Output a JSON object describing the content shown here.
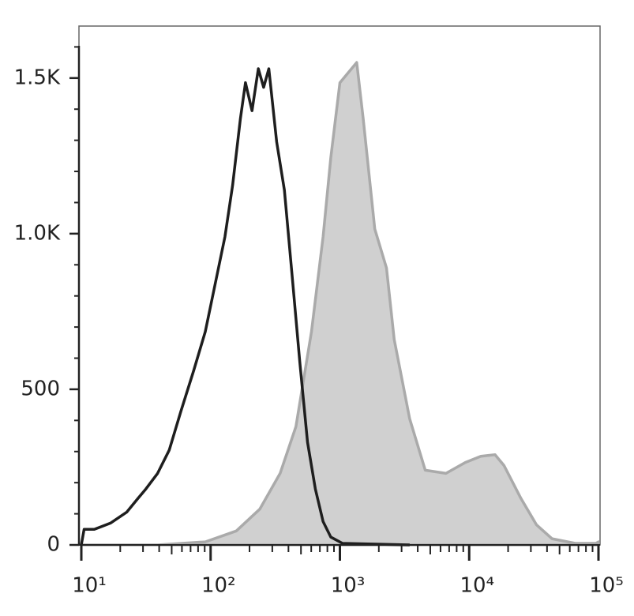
{
  "chart_data": {
    "type": "histogram-overlay",
    "xscale": "log",
    "xlim": [
      10,
      100000
    ],
    "ylim": [
      0,
      1667
    ],
    "xticks": [
      {
        "value": 10,
        "label": "10¹"
      },
      {
        "value": 100,
        "label": "10²"
      },
      {
        "value": 1000,
        "label": "10³"
      },
      {
        "value": 10000,
        "label": "10⁴"
      },
      {
        "value": 100000,
        "label": "10⁵"
      }
    ],
    "yticks": [
      0,
      500,
      {
        "value": 1000,
        "label": "1.0K"
      },
      {
        "value": 1500,
        "label": "1.5K"
      }
    ],
    "series": [
      {
        "color": "#aaaaaa",
        "fill": "#d0d0d0",
        "x": [
          10,
          39,
          91,
          158,
          240,
          345,
          457,
          603,
          741,
          851,
          1000,
          1122,
          1349,
          1514,
          1862,
          2291,
          2630,
          3467,
          4571,
          6607,
          9333,
          12300,
          15850,
          18600,
          25100,
          33100,
          43700,
          66100,
          95500,
          100000
        ],
        "values": [
          0,
          0,
          10,
          45,
          115,
          230,
          380,
          685,
          990,
          1245,
          1485,
          1510,
          1550,
          1370,
          1015,
          890,
          660,
          405,
          240,
          230,
          265,
          285,
          290,
          255,
          150,
          65,
          20,
          5,
          5,
          10
        ]
      },
      {
        "color": "#1e1e1e",
        "fill": null,
        "x": [
          10,
          10.5,
          12.6,
          16.8,
          22.4,
          27.5,
          31.6,
          38.9,
          47.9,
          59,
          74,
          91,
          105,
          129,
          148,
          170,
          186,
          209,
          234,
          257,
          282,
          324,
          372,
          427,
          490,
          562,
          646,
          741,
          851,
          1047,
          3467
        ],
        "values": [
          0,
          50,
          50,
          70,
          105,
          150,
          180,
          230,
          305,
          430,
          560,
          685,
          810,
          990,
          1155,
          1370,
          1485,
          1395,
          1530,
          1470,
          1530,
          1295,
          1140,
          865,
          585,
          330,
          180,
          75,
          25,
          5,
          0
        ]
      }
    ]
  }
}
